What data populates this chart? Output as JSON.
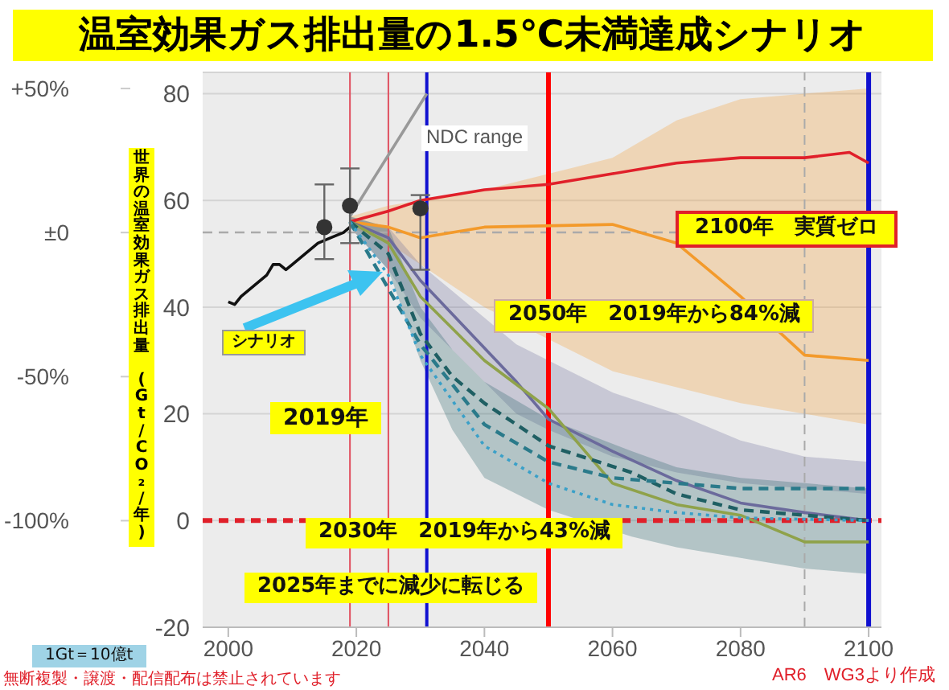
{
  "chart_data": {
    "type": "line",
    "title": "温室効果ガス排出量の1.5℃未満達成シナリオ",
    "ylabel": "世界の温室効果ガス排出量 (Gt/CO₂/年)",
    "xlim": [
      1996,
      2102
    ],
    "xticks": [
      2000,
      2020,
      2040,
      2060,
      2080,
      2100
    ],
    "ylim": [
      -20,
      84
    ],
    "yticks": [
      -20,
      0,
      20,
      40,
      60,
      80
    ],
    "y2lim": [
      -137,
      55.6
    ],
    "y2ticks": [
      {
        "value": 50,
        "label": "+50%"
      },
      {
        "value": 0,
        "label": "±0"
      },
      {
        "value": -50,
        "label": "-50%"
      },
      {
        "value": -100,
        "label": "-100%"
      }
    ],
    "grid": "y",
    "series": [
      {
        "color": "#111111",
        "x": [
          2000,
          2001,
          2002,
          2004,
          2006,
          2007,
          2008,
          2009,
          2010,
          2012,
          2014,
          2016,
          2018,
          2019
        ],
        "values": [
          41,
          40.5,
          42,
          44,
          46,
          48,
          48,
          47,
          48,
          50,
          52,
          53,
          54,
          55
        ]
      },
      {
        "color": "#999999",
        "x": [
          2019,
          2031
        ],
        "values": [
          57,
          80
        ]
      },
      {
        "color": "#f39a2b",
        "x": [
          2019,
          2025,
          2030,
          2035,
          2040,
          2060,
          2070,
          2080,
          2090,
          2100
        ],
        "values": [
          56,
          55,
          53,
          54,
          55,
          55.5,
          52,
          42,
          31,
          30
        ],
        "lower": [
          55,
          52,
          48,
          44,
          40,
          28,
          25,
          22,
          20,
          18
        ],
        "upper": [
          57,
          59,
          60,
          61,
          62,
          68,
          75,
          79,
          80,
          81
        ]
      },
      {
        "color": "#e0202a",
        "x": [
          2019,
          2025,
          2030,
          2040,
          2050,
          2060,
          2070,
          2080,
          2090,
          2097,
          2100
        ],
        "values": [
          56,
          58,
          60,
          62,
          63,
          65,
          67,
          68,
          68,
          69,
          67
        ]
      },
      {
        "color": "#6b6a9c",
        "x": [
          2019,
          2025,
          2030,
          2045,
          2050,
          2060,
          2070,
          2080,
          2090,
          2100
        ],
        "values": [
          56,
          53,
          45,
          26,
          19,
          13,
          7.5,
          3.3,
          1.5,
          0
        ],
        "lower": [
          55,
          47,
          38,
          20,
          17,
          12,
          9,
          7,
          6,
          5
        ],
        "upper": [
          57,
          55,
          48,
          33,
          30,
          24,
          20,
          15,
          12,
          11
        ]
      },
      {
        "color": "#8fa24a",
        "x": [
          2019,
          2025,
          2030,
          2040,
          2050,
          2060,
          2070,
          2080,
          2090,
          2100
        ],
        "values": [
          56,
          52,
          42,
          30,
          21,
          7,
          3,
          1,
          -4,
          -4
        ]
      },
      {
        "color": "#1f5f63",
        "line_style": "dashed",
        "x": [
          2019,
          2025,
          2030,
          2035,
          2040,
          2050,
          2063,
          2070,
          2080,
          2090,
          2100
        ],
        "values": [
          56,
          50,
          35,
          27,
          22,
          14,
          9,
          5,
          2,
          1,
          0
        ],
        "lower": [
          55,
          47,
          30,
          17,
          8,
          2,
          -3,
          -5,
          -7,
          -9,
          -10
        ],
        "upper": [
          57,
          55,
          40,
          32,
          26,
          19,
          13,
          10,
          8,
          7,
          6
        ]
      },
      {
        "color": "#2a7a8a",
        "line_style": "dashed",
        "x": [
          2019,
          2030,
          2040,
          2050,
          2060,
          2070,
          2080,
          2100
        ],
        "values": [
          56,
          33,
          18,
          11,
          8,
          7,
          6,
          6
        ]
      },
      {
        "color": "#3aa0c8",
        "line_style": "dotted",
        "x": [
          2019,
          2025,
          2030,
          2040,
          2050,
          2060,
          2070,
          2080,
          2100
        ],
        "values": [
          56,
          46,
          31,
          14,
          7,
          3,
          1.5,
          0.5,
          0
        ]
      },
      {
        "type": "scatter",
        "color": "#333333",
        "marker": "circle",
        "x": [
          2015,
          2019,
          2030
        ],
        "values": [
          55,
          59,
          58.5
        ],
        "errors": [
          [
            49,
            63
          ],
          [
            52,
            66
          ],
          [
            47,
            61
          ]
        ]
      }
    ],
    "ref_lines": [
      {
        "axis": "y",
        "value": 54,
        "color": "#aaaaaa",
        "line_style": "dashed"
      },
      {
        "axis": "y",
        "value": 0,
        "color": "#e0202a",
        "line_style": "dashed"
      },
      {
        "axis": "x",
        "value": 2019,
        "color": "#e05060",
        "line_style": "solid"
      },
      {
        "axis": "x",
        "value": 2025,
        "color": "#e05060",
        "line_style": "solid"
      },
      {
        "axis": "x",
        "value": 2031,
        "color": "#1010d0",
        "line_style": "solid"
      },
      {
        "axis": "x",
        "value": 2050,
        "color": "#ff0000",
        "line_style": "solid"
      },
      {
        "axis": "x",
        "value": 2090,
        "color": "#aaaaaa",
        "line_style": "dashed"
      },
      {
        "axis": "x",
        "value": 2100,
        "color": "#1010d0",
        "line_style": "solid"
      }
    ],
    "annotations": [
      "NDC range",
      "シナリオ",
      "2019年",
      "2050年　2019年から84%減",
      "2100年　実質ゼロ",
      "2030年　2019年から43%減",
      "2025年までに減少に転じる",
      "1Gt＝10億t",
      "無断複製・譲渡・配信配布は禁止されています",
      "AR6　WG3より作成"
    ]
  }
}
